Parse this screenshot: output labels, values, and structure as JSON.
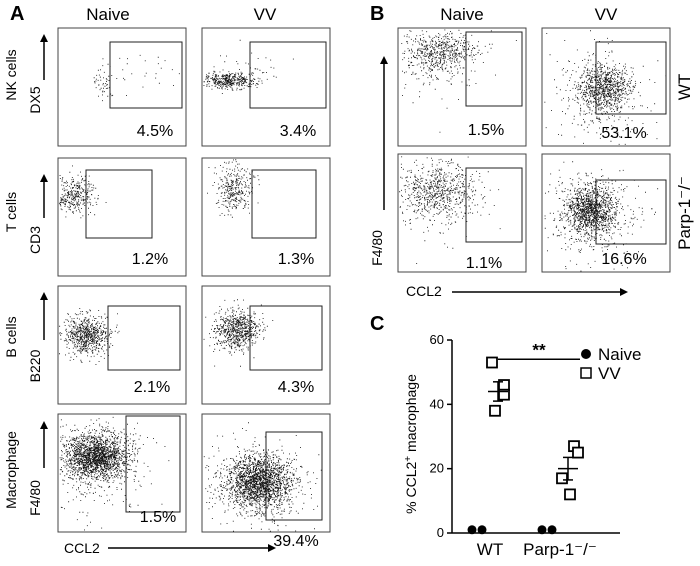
{
  "panels": {
    "a": "A",
    "b": "B",
    "c": "C"
  },
  "flow_a": {
    "columns": [
      "Naive",
      "VV"
    ],
    "rows": [
      {
        "cell_type": "NK cells",
        "marker": "DX5",
        "naive_pct": "4.5%",
        "vv_pct": "3.4%"
      },
      {
        "cell_type": "T cells",
        "marker": "CD3",
        "naive_pct": "1.2%",
        "vv_pct": "1.3%"
      },
      {
        "cell_type": "B cells",
        "marker": "B220",
        "naive_pct": "2.1%",
        "vv_pct": "4.3%"
      },
      {
        "cell_type": "Macrophage",
        "marker": "F4/80",
        "naive_pct": "1.5%",
        "vv_pct": "39.4%"
      }
    ],
    "x_axis": "CCL2"
  },
  "flow_b": {
    "columns": [
      "Naive",
      "VV"
    ],
    "rows": [
      {
        "genotype": "WT",
        "naive_pct": "1.5%",
        "vv_pct": "53.1%"
      },
      {
        "genotype": "Parp-1⁻/⁻",
        "naive_pct": "1.1%",
        "vv_pct": "16.6%"
      }
    ],
    "y_axis": "F4/80",
    "x_axis": "CCL2"
  },
  "chart_data": {
    "type": "scatter",
    "ylabel_prefix": "% CCL2",
    "ylabel_sup": "+",
    "ylabel_suffix": " macrophage",
    "categories": [
      "WT",
      "Parp-1⁻/⁻"
    ],
    "ylim": [
      0,
      60
    ],
    "yticks": [
      "0",
      "20",
      "40",
      "60"
    ],
    "legend": {
      "placement": "top-right",
      "entries": [
        "Naive",
        "VV"
      ]
    },
    "series": [
      {
        "name": "Naive",
        "marker": "filled-circle",
        "points": [
          {
            "category": "WT",
            "values": [
              1,
              1
            ]
          },
          {
            "category": "Parp-1⁻/⁻",
            "values": [
              1,
              1
            ]
          }
        ]
      },
      {
        "name": "VV",
        "marker": "open-square",
        "points": [
          {
            "category": "WT",
            "values": [
              53,
              46,
              43,
              38
            ],
            "mean": 44,
            "sem": 3
          },
          {
            "category": "Parp-1⁻/⁻",
            "values": [
              27,
              25,
              17,
              12
            ],
            "mean": 20,
            "sem": 3.5
          }
        ]
      }
    ],
    "significance": "**"
  }
}
